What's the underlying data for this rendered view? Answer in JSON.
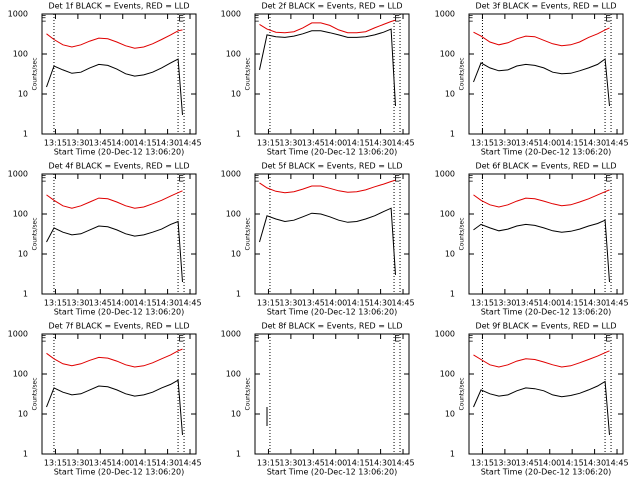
{
  "chart_data": [
    {
      "type": "line",
      "title": "Det 1f BLACK = Events, RED = LLD",
      "x_label": "Start Time (20-Dec-12 13:06:20)",
      "y_label": "Counts/sec",
      "log_y": true,
      "xlim": [
        6,
        109
      ],
      "ylim": [
        1,
        1000
      ],
      "yticks": [
        1,
        10,
        100,
        1000
      ],
      "xticks": [
        {
          "value": 15,
          "label": "13:15"
        },
        {
          "value": 30,
          "label": "13:30"
        },
        {
          "value": 45,
          "label": "13:45"
        },
        {
          "value": 60,
          "label": "14:00"
        },
        {
          "value": 75,
          "label": "14:15"
        },
        {
          "value": 90,
          "label": "14:30"
        },
        {
          "value": 105,
          "label": "14:45"
        }
      ],
      "vlines": [
        14,
        97,
        101
      ],
      "annotations": [
        {
          "x": 7,
          "text": "E"
        },
        {
          "x": 99,
          "text": "E"
        }
      ],
      "x": [
        9,
        14,
        20,
        26,
        32,
        38,
        44,
        50,
        56,
        62,
        68,
        74,
        80,
        86,
        92,
        97,
        100
      ],
      "series": [
        {
          "color": "#e00000",
          "values": [
            320,
            230,
            170,
            150,
            170,
            210,
            250,
            240,
            200,
            160,
            140,
            150,
            180,
            230,
            300,
            380,
            400
          ]
        },
        {
          "color": "#000000",
          "values": [
            15,
            50,
            40,
            33,
            35,
            45,
            55,
            52,
            42,
            32,
            28,
            30,
            35,
            45,
            60,
            75,
            3
          ]
        }
      ]
    },
    {
      "type": "line",
      "title": "Det 2f BLACK = Events, RED = LLD",
      "x_label": "Start Time (20-Dec-12 13:06:20)",
      "y_label": "Counts/sec",
      "log_y": true,
      "xlim": [
        6,
        109
      ],
      "ylim": [
        1,
        1000
      ],
      "yticks": [
        1,
        10,
        100,
        1000
      ],
      "xticks": [
        {
          "value": 15,
          "label": "13:15"
        },
        {
          "value": 30,
          "label": "13:30"
        },
        {
          "value": 45,
          "label": "13:45"
        },
        {
          "value": 60,
          "label": "14:00"
        },
        {
          "value": 75,
          "label": "14:15"
        },
        {
          "value": 90,
          "label": "14:30"
        },
        {
          "value": 105,
          "label": "14:45"
        }
      ],
      "vlines": [
        16,
        99,
        103
      ],
      "annotations": [
        {
          "x": 7,
          "text": "E"
        },
        {
          "x": 101,
          "text": "E"
        }
      ],
      "x": [
        9,
        14,
        20,
        26,
        32,
        38,
        44,
        50,
        56,
        62,
        68,
        74,
        80,
        86,
        92,
        97,
        100
      ],
      "series": [
        {
          "color": "#e00000",
          "values": [
            550,
            420,
            350,
            340,
            360,
            450,
            600,
            600,
            520,
            400,
            340,
            340,
            360,
            450,
            550,
            650,
            700
          ]
        },
        {
          "color": "#000000",
          "values": [
            40,
            300,
            270,
            260,
            280,
            320,
            380,
            380,
            340,
            300,
            260,
            260,
            270,
            300,
            350,
            420,
            5
          ]
        }
      ]
    },
    {
      "type": "line",
      "title": "Det 3f BLACK = Events, RED = LLD",
      "x_label": "Start Time (20-Dec-12 13:06:20)",
      "y_label": "Counts/sec",
      "log_y": true,
      "xlim": [
        6,
        109
      ],
      "ylim": [
        1,
        1000
      ],
      "yticks": [
        1,
        10,
        100,
        1000
      ],
      "xticks": [
        {
          "value": 15,
          "label": "13:15"
        },
        {
          "value": 30,
          "label": "13:30"
        },
        {
          "value": 45,
          "label": "13:45"
        },
        {
          "value": 60,
          "label": "14:00"
        },
        {
          "value": 75,
          "label": "14:15"
        },
        {
          "value": 90,
          "label": "14:30"
        },
        {
          "value": 105,
          "label": "14:45"
        }
      ],
      "vlines": [
        15,
        97,
        101
      ],
      "annotations": [
        {
          "x": 7,
          "text": "E"
        },
        {
          "x": 99,
          "text": "E"
        }
      ],
      "x": [
        9,
        14,
        20,
        26,
        32,
        38,
        44,
        50,
        56,
        62,
        68,
        74,
        80,
        86,
        92,
        97,
        100
      ],
      "series": [
        {
          "color": "#e00000",
          "values": [
            350,
            280,
            200,
            170,
            190,
            240,
            280,
            270,
            220,
            180,
            160,
            170,
            200,
            260,
            320,
            400,
            450
          ]
        },
        {
          "color": "#000000",
          "values": [
            20,
            60,
            45,
            38,
            40,
            50,
            55,
            52,
            45,
            35,
            32,
            33,
            38,
            45,
            55,
            75,
            5
          ]
        }
      ]
    },
    {
      "type": "line",
      "title": "Det 4f BLACK = Events, RED = LLD",
      "x_label": "Start Time (20-Dec-12 13:06:20)",
      "y_label": "Counts/sec",
      "log_y": true,
      "xlim": [
        6,
        109
      ],
      "ylim": [
        1,
        1000
      ],
      "yticks": [
        1,
        10,
        100,
        1000
      ],
      "xticks": [
        {
          "value": 15,
          "label": "13:15"
        },
        {
          "value": 30,
          "label": "13:30"
        },
        {
          "value": 45,
          "label": "13:45"
        },
        {
          "value": 60,
          "label": "14:00"
        },
        {
          "value": 75,
          "label": "14:15"
        },
        {
          "value": 90,
          "label": "14:30"
        },
        {
          "value": 105,
          "label": "14:45"
        }
      ],
      "vlines": [
        14,
        97,
        101
      ],
      "annotations": [
        {
          "x": 7,
          "text": "E"
        },
        {
          "x": 99,
          "text": "E"
        }
      ],
      "x": [
        9,
        14,
        20,
        26,
        32,
        38,
        44,
        50,
        56,
        62,
        68,
        74,
        80,
        86,
        92,
        97,
        100
      ],
      "series": [
        {
          "color": "#e00000",
          "values": [
            300,
            220,
            160,
            140,
            160,
            200,
            250,
            240,
            200,
            160,
            140,
            150,
            180,
            220,
            280,
            340,
            380
          ]
        },
        {
          "color": "#000000",
          "values": [
            20,
            45,
            35,
            30,
            32,
            40,
            50,
            48,
            40,
            32,
            28,
            30,
            35,
            42,
            55,
            65,
            2
          ]
        }
      ]
    },
    {
      "type": "line",
      "title": "Det 5f BLACK = Events, RED = LLD",
      "x_label": "Start Time (20-Dec-12 13:06:20)",
      "y_label": "Counts/sec",
      "log_y": true,
      "xlim": [
        6,
        109
      ],
      "ylim": [
        1,
        1000
      ],
      "yticks": [
        1,
        10,
        100,
        1000
      ],
      "xticks": [
        {
          "value": 15,
          "label": "13:15"
        },
        {
          "value": 30,
          "label": "13:30"
        },
        {
          "value": 45,
          "label": "13:45"
        },
        {
          "value": 60,
          "label": "14:00"
        },
        {
          "value": 75,
          "label": "14:15"
        },
        {
          "value": 90,
          "label": "14:30"
        },
        {
          "value": 105,
          "label": "14:45"
        }
      ],
      "vlines": [
        16,
        99,
        103
      ],
      "annotations": [
        {
          "x": 7,
          "text": "E"
        },
        {
          "x": 101,
          "text": "E"
        }
      ],
      "x": [
        9,
        14,
        20,
        26,
        32,
        38,
        44,
        50,
        56,
        62,
        68,
        74,
        80,
        86,
        92,
        97,
        100
      ],
      "series": [
        {
          "color": "#e00000",
          "values": [
            600,
            450,
            370,
            340,
            360,
            420,
            500,
            500,
            440,
            380,
            350,
            360,
            400,
            480,
            560,
            650,
            700
          ]
        },
        {
          "color": "#000000",
          "values": [
            20,
            90,
            75,
            65,
            70,
            85,
            105,
            100,
            85,
            70,
            62,
            65,
            75,
            90,
            115,
            140,
            3
          ]
        }
      ]
    },
    {
      "type": "line",
      "title": "Det 6f BLACK = Events, RED = LLD",
      "x_label": "Start Time (20-Dec-12 13:06:20)",
      "y_label": "Counts/sec",
      "log_y": true,
      "xlim": [
        6,
        109
      ],
      "ylim": [
        1,
        1000
      ],
      "yticks": [
        1,
        10,
        100,
        1000
      ],
      "xticks": [
        {
          "value": 15,
          "label": "13:15"
        },
        {
          "value": 30,
          "label": "13:30"
        },
        {
          "value": 45,
          "label": "13:45"
        },
        {
          "value": 60,
          "label": "14:00"
        },
        {
          "value": 75,
          "label": "14:15"
        },
        {
          "value": 90,
          "label": "14:30"
        },
        {
          "value": 105,
          "label": "14:45"
        }
      ],
      "vlines": [
        15,
        97,
        101
      ],
      "annotations": [
        {
          "x": 7,
          "text": "E"
        },
        {
          "x": 99,
          "text": "E"
        }
      ],
      "x": [
        9,
        14,
        20,
        26,
        32,
        38,
        44,
        50,
        56,
        62,
        68,
        74,
        80,
        86,
        92,
        97,
        100
      ],
      "series": [
        {
          "color": "#e00000",
          "values": [
            300,
            220,
            170,
            150,
            170,
            210,
            250,
            240,
            210,
            180,
            160,
            170,
            200,
            240,
            300,
            360,
            400
          ]
        },
        {
          "color": "#000000",
          "values": [
            40,
            55,
            45,
            38,
            42,
            50,
            55,
            52,
            45,
            38,
            35,
            37,
            42,
            50,
            58,
            70,
            2
          ]
        }
      ]
    },
    {
      "type": "line",
      "title": "Det 7f BLACK = Events, RED = LLD",
      "x_label": "Start Time (20-Dec-12 13:06:20)",
      "y_label": "Counts/sec",
      "log_y": true,
      "xlim": [
        6,
        109
      ],
      "ylim": [
        1,
        1000
      ],
      "yticks": [
        1,
        10,
        100,
        1000
      ],
      "xticks": [
        {
          "value": 15,
          "label": "13:15"
        },
        {
          "value": 30,
          "label": "13:30"
        },
        {
          "value": 45,
          "label": "13:45"
        },
        {
          "value": 60,
          "label": "14:00"
        },
        {
          "value": 75,
          "label": "14:15"
        },
        {
          "value": 90,
          "label": "14:30"
        },
        {
          "value": 105,
          "label": "14:45"
        }
      ],
      "vlines": [
        14,
        97,
        101
      ],
      "annotations": [
        {
          "x": 7,
          "text": "E"
        },
        {
          "x": 99,
          "text": "E"
        }
      ],
      "x": [
        9,
        14,
        20,
        26,
        32,
        38,
        44,
        50,
        56,
        62,
        68,
        74,
        80,
        86,
        92,
        97,
        100
      ],
      "series": [
        {
          "color": "#e00000",
          "values": [
            330,
            240,
            180,
            160,
            180,
            220,
            260,
            250,
            210,
            170,
            150,
            160,
            190,
            240,
            300,
            380,
            420
          ]
        },
        {
          "color": "#000000",
          "values": [
            15,
            45,
            35,
            30,
            32,
            40,
            50,
            48,
            40,
            32,
            28,
            30,
            35,
            45,
            55,
            70,
            3
          ]
        }
      ]
    },
    {
      "type": "line",
      "title": "Det 8f BLACK = Events, RED = LLD",
      "x_label": "Start Time (20-Dec-12 13:06:20)",
      "y_label": "Counts/sec",
      "log_y": true,
      "xlim": [
        6,
        109
      ],
      "ylim": [
        1,
        1000
      ],
      "yticks": [
        1,
        10,
        100,
        1000
      ],
      "xticks": [
        {
          "value": 15,
          "label": "13:15"
        },
        {
          "value": 30,
          "label": "13:30"
        },
        {
          "value": 45,
          "label": "13:45"
        },
        {
          "value": 60,
          "label": "14:00"
        },
        {
          "value": 75,
          "label": "14:15"
        },
        {
          "value": 90,
          "label": "14:30"
        },
        {
          "value": 105,
          "label": "14:45"
        }
      ],
      "vlines": [
        16,
        99,
        103
      ],
      "annotations": [
        {
          "x": 7,
          "text": "E"
        },
        {
          "x": 101,
          "text": "E"
        }
      ],
      "x": [
        14,
        14
      ],
      "series": [
        {
          "color": "#000000",
          "values": [
            5,
            15
          ]
        }
      ]
    },
    {
      "type": "line",
      "title": "Det 9f BLACK = Events, RED = LLD",
      "x_label": "Start Time (20-Dec-12 13:06:20)",
      "y_label": "Counts/sec",
      "log_y": true,
      "xlim": [
        6,
        109
      ],
      "ylim": [
        1,
        1000
      ],
      "yticks": [
        1,
        10,
        100,
        1000
      ],
      "xticks": [
        {
          "value": 15,
          "label": "13:15"
        },
        {
          "value": 30,
          "label": "13:30"
        },
        {
          "value": 45,
          "label": "13:45"
        },
        {
          "value": 60,
          "label": "14:00"
        },
        {
          "value": 75,
          "label": "14:15"
        },
        {
          "value": 90,
          "label": "14:30"
        },
        {
          "value": 105,
          "label": "14:45"
        }
      ],
      "vlines": [
        15,
        97,
        101
      ],
      "annotations": [
        {
          "x": 7,
          "text": "E"
        },
        {
          "x": 99,
          "text": "E"
        }
      ],
      "x": [
        9,
        14,
        20,
        26,
        32,
        38,
        44,
        50,
        56,
        62,
        68,
        74,
        80,
        86,
        92,
        97,
        100
      ],
      "series": [
        {
          "color": "#e00000",
          "values": [
            300,
            230,
            170,
            150,
            170,
            210,
            240,
            230,
            200,
            170,
            150,
            160,
            190,
            230,
            280,
            340,
            380
          ]
        },
        {
          "color": "#000000",
          "values": [
            15,
            40,
            32,
            28,
            30,
            38,
            45,
            43,
            38,
            30,
            27,
            29,
            33,
            40,
            50,
            65,
            3
          ]
        }
      ]
    }
  ]
}
